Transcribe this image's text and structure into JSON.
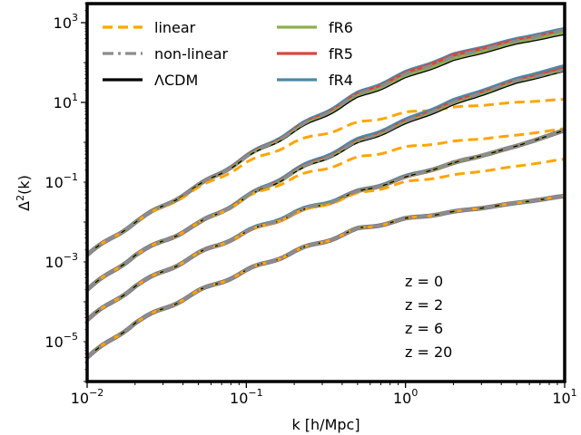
{
  "chart_data": {
    "type": "line",
    "xscale": "log",
    "yscale": "log",
    "xlabel": "k [h/Mpc]",
    "ylabel": "Δ²(k)",
    "xlim": [
      0.01,
      10
    ],
    "ylim": [
      1e-06,
      3000
    ],
    "xticks": [
      {
        "value": 0.01,
        "base": "10",
        "exp": "−2"
      },
      {
        "value": 0.1,
        "base": "10",
        "exp": "−1"
      },
      {
        "value": 1,
        "base": "10",
        "exp": "0"
      },
      {
        "value": 10,
        "base": "10",
        "exp": "1"
      }
    ],
    "yticks": [
      {
        "value": 1e-05,
        "base": "10",
        "exp": "−5"
      },
      {
        "value": 0.001,
        "base": "10",
        "exp": "−3"
      },
      {
        "value": 0.1,
        "base": "10",
        "exp": "−1"
      },
      {
        "value": 10,
        "base": "10",
        "exp": "1"
      },
      {
        "value": 1000,
        "base": "10",
        "exp": "3"
      }
    ],
    "legend": {
      "location": "upper-left",
      "entries": [
        {
          "label": "linear",
          "style": "dashed",
          "color": "#ffa500"
        },
        {
          "label": "non-linear",
          "style": "dashdot",
          "color": "#8c8c8c"
        },
        {
          "label": "ΛCDM",
          "style": "solid",
          "color": "#000000"
        },
        {
          "label": "fR6",
          "style": "solid",
          "color": "#8db04f"
        },
        {
          "label": "fR5",
          "style": "solid",
          "color": "#d9473d"
        },
        {
          "label": "fR4",
          "style": "solid",
          "color": "#4e87a8"
        }
      ]
    },
    "redshift_labels": [
      "z = 0",
      "z = 2",
      "z = 6",
      "z = 20"
    ],
    "k_values": [
      0.01,
      0.02,
      0.05,
      0.1,
      0.2,
      0.5,
      1,
      2,
      5,
      10
    ],
    "series": [
      {
        "redshift": 0,
        "linear": [
          0.0015,
          0.01,
          0.07,
          0.3,
          1.0,
          3.0,
          5.5,
          7.5,
          10.0,
          12.0
        ],
        "nonlinear": [
          0.0015,
          0.01,
          0.08,
          0.42,
          2.0,
          15.0,
          50.0,
          140.0,
          350.0,
          650.0
        ],
        "lcdm": [
          0.0015,
          0.01,
          0.08,
          0.4,
          1.8,
          12.5,
          40.0,
          110.0,
          290.0,
          500.0
        ],
        "fR6": [
          0.0015,
          0.01,
          0.08,
          0.41,
          1.9,
          13.5,
          44.0,
          125.0,
          320.0,
          560.0
        ],
        "fR5": [
          0.0015,
          0.01,
          0.08,
          0.42,
          2.0,
          15.0,
          52.0,
          150.0,
          360.0,
          620.0
        ],
        "fR4": [
          0.0015,
          0.01,
          0.08,
          0.43,
          2.1,
          16.0,
          55.0,
          155.0,
          380.0,
          680.0
        ]
      },
      {
        "redshift": 2,
        "linear": [
          0.0002,
          0.0015,
          0.009,
          0.04,
          0.13,
          0.4,
          0.75,
          1.05,
          1.5,
          2.2
        ],
        "nonlinear": [
          0.0002,
          0.0015,
          0.009,
          0.042,
          0.18,
          1.0,
          3.2,
          10.0,
          35.0,
          65.0
        ],
        "lcdm": [
          0.0002,
          0.0015,
          0.009,
          0.04,
          0.17,
          0.9,
          2.8,
          8.5,
          30.0,
          60.0
        ],
        "fR6": [
          0.0002,
          0.0015,
          0.009,
          0.04,
          0.175,
          0.95,
          3.0,
          9.0,
          32.0,
          63.0
        ],
        "fR5": [
          0.0002,
          0.0015,
          0.009,
          0.041,
          0.18,
          1.0,
          3.2,
          10.0,
          35.0,
          70.0
        ],
        "fR4": [
          0.0002,
          0.0015,
          0.009,
          0.042,
          0.19,
          1.1,
          3.5,
          11.0,
          38.0,
          80.0
        ]
      },
      {
        "redshift": 6,
        "linear": [
          3.5e-05,
          0.00025,
          0.0016,
          0.0055,
          0.016,
          0.05,
          0.1,
          0.15,
          0.25,
          0.38
        ],
        "nonlinear": [
          3.5e-05,
          0.00025,
          0.0016,
          0.0056,
          0.017,
          0.055,
          0.13,
          0.32,
          0.8,
          2.0
        ],
        "lcdm": [
          3.5e-05,
          0.00025,
          0.0016,
          0.0055,
          0.016,
          0.055,
          0.13,
          0.3,
          0.8,
          2.0
        ],
        "fR6": [
          3.5e-05,
          0.00025,
          0.0016,
          0.0055,
          0.016,
          0.055,
          0.13,
          0.3,
          0.8,
          2.0
        ],
        "fR5": [
          3.5e-05,
          0.00025,
          0.0016,
          0.0055,
          0.016,
          0.055,
          0.13,
          0.3,
          0.8,
          2.0
        ],
        "fR4": [
          3.5e-05,
          0.00025,
          0.0016,
          0.0056,
          0.017,
          0.056,
          0.135,
          0.3,
          0.8,
          2.0
        ]
      },
      {
        "redshift": 20,
        "linear": [
          4e-06,
          3e-05,
          0.00018,
          0.0006,
          0.0018,
          0.0065,
          0.012,
          0.018,
          0.03,
          0.045
        ],
        "nonlinear": [
          4e-06,
          3e-05,
          0.00018,
          0.0006,
          0.0018,
          0.0065,
          0.012,
          0.018,
          0.03,
          0.045
        ],
        "lcdm": [
          4e-06,
          3e-05,
          0.00018,
          0.0006,
          0.0018,
          0.0065,
          0.012,
          0.018,
          0.03,
          0.045
        ],
        "fR6": [
          4e-06,
          3e-05,
          0.00018,
          0.0006,
          0.0018,
          0.0065,
          0.012,
          0.018,
          0.03,
          0.045
        ],
        "fR5": [
          4e-06,
          3e-05,
          0.00018,
          0.0006,
          0.0018,
          0.0065,
          0.012,
          0.018,
          0.03,
          0.045
        ],
        "fR4": [
          4e-06,
          3e-05,
          0.00018,
          0.0006,
          0.0018,
          0.0065,
          0.012,
          0.018,
          0.03,
          0.045
        ]
      }
    ]
  }
}
